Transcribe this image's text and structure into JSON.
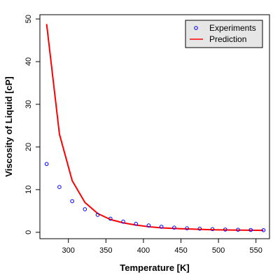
{
  "chart_data": {
    "type": "line",
    "xlabel": "Temperature [K]",
    "ylabel": "Viscosity of Liquid [cP]",
    "xlim": [
      262,
      568
    ],
    "ylim": [
      -1.5,
      51
    ],
    "xticks": [
      300,
      350,
      400,
      450,
      500,
      550
    ],
    "yticks": [
      0,
      10,
      20,
      30,
      40,
      50
    ],
    "grid": false,
    "legend": "top-right",
    "colors": {
      "experiments": "#0000ff",
      "prediction": "#ff0000",
      "legend_bg": "#e6e6e6"
    },
    "series": [
      {
        "name": "Experiments",
        "kind": "scatter",
        "marker": "o",
        "x": [
          271,
          288,
          305,
          322,
          339,
          356,
          373,
          390,
          407,
          424,
          441,
          458,
          475,
          492,
          509,
          526,
          543,
          560
        ],
        "y": [
          16.0,
          10.6,
          7.3,
          5.4,
          4.1,
          3.2,
          2.5,
          2.0,
          1.6,
          1.3,
          1.1,
          0.95,
          0.85,
          0.75,
          0.65,
          0.6,
          0.55,
          0.5
        ]
      },
      {
        "name": "Prediction",
        "kind": "line",
        "x": [
          271,
          288,
          305,
          322,
          339,
          356,
          373,
          390,
          407,
          424,
          441,
          458,
          475,
          492,
          509,
          526,
          543,
          560
        ],
        "y": [
          48.8,
          23.0,
          12.1,
          7.0,
          4.4,
          3.0,
          2.2,
          1.7,
          1.3,
          1.05,
          0.9,
          0.8,
          0.7,
          0.6,
          0.55,
          0.5,
          0.48,
          0.45
        ]
      }
    ]
  }
}
